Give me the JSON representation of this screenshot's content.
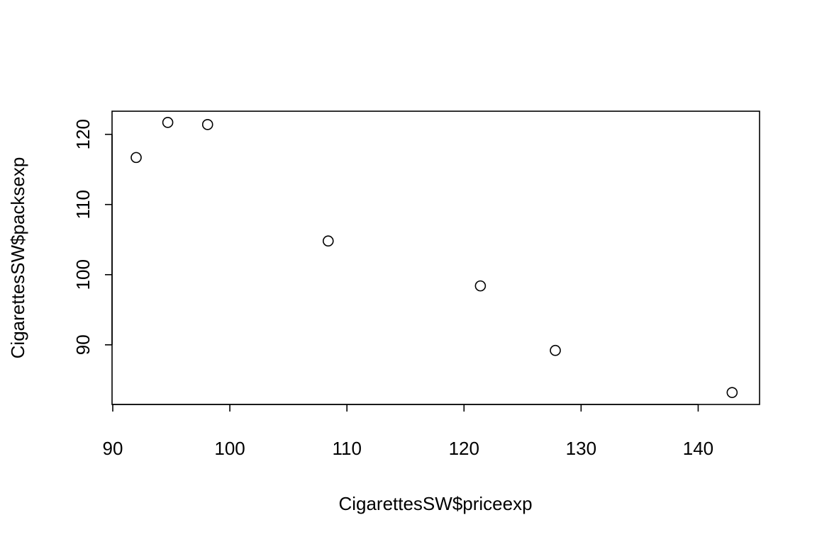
{
  "chart_data": {
    "type": "scatter",
    "title": "",
    "xlabel": "CigarettesSW$priceexp",
    "ylabel": "CigarettesSW$packsexp",
    "xlim": [
      90,
      145
    ],
    "ylim": [
      81.5,
      123.3
    ],
    "xticks": [
      90,
      100,
      110,
      120,
      130,
      140
    ],
    "yticks": [
      90,
      100,
      110,
      120
    ],
    "grid": false,
    "legend": "none",
    "marker": "open-circle",
    "points": [
      {
        "x": 92.0,
        "y": 116.7
      },
      {
        "x": 94.7,
        "y": 121.7
      },
      {
        "x": 98.1,
        "y": 121.4
      },
      {
        "x": 108.4,
        "y": 104.8
      },
      {
        "x": 121.4,
        "y": 98.4
      },
      {
        "x": 127.8,
        "y": 89.2
      },
      {
        "x": 142.9,
        "y": 83.2
      }
    ]
  }
}
